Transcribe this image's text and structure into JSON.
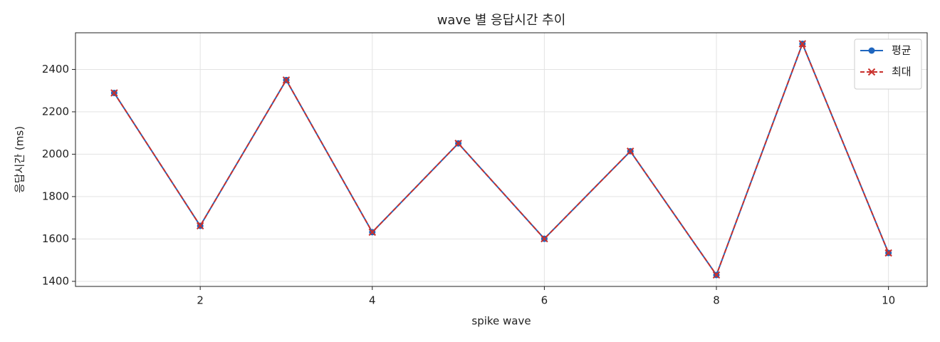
{
  "chart_data": {
    "type": "line",
    "title": "wave 별 응답시간 추이",
    "x_label": "spike wave",
    "y_label": "응답시간 (ms)",
    "x": [
      1,
      2,
      3,
      4,
      5,
      6,
      7,
      8,
      9,
      10
    ],
    "series": [
      {
        "name": "평균",
        "color": "#1f66bf",
        "line_style": "solid",
        "marker": "circle",
        "values": [
          2289,
          1662,
          2350,
          1632,
          2051,
          1601,
          2014,
          1430,
          2521,
          1534
        ]
      },
      {
        "name": "최대",
        "color": "#c9302c",
        "line_style": "dashed",
        "marker": "x",
        "values": [
          2289,
          1662,
          2350,
          1632,
          2051,
          1601,
          2014,
          1430,
          2521,
          1534
        ]
      }
    ],
    "xlim": [
      0.55,
      10.45
    ],
    "xticks": [
      2,
      4,
      6,
      8,
      10
    ],
    "ylim": [
      1376,
      2573
    ],
    "yticks": [
      1400,
      1600,
      1800,
      2000,
      2200,
      2400
    ],
    "grid": true,
    "legend_position": "upper-right"
  }
}
